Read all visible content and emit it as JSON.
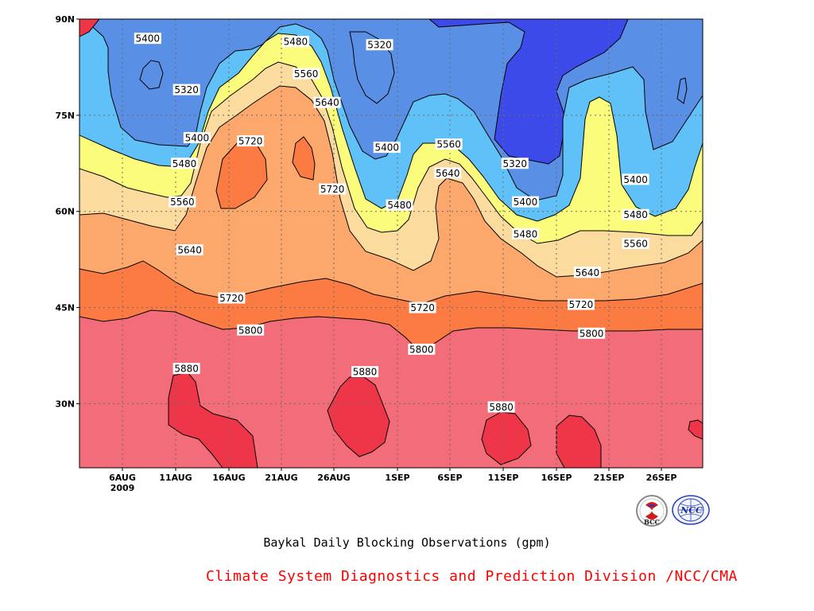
{
  "chart_data": {
    "type": "contour",
    "title": "Baykal Daily Blocking Observations (gpm)",
    "x_ticks": [
      "6AUG",
      "11AUG",
      "16AUG",
      "21AUG",
      "26AUG",
      "1SEP",
      "6SEP",
      "11SEP",
      "16SEP",
      "21SEP",
      "26SEP"
    ],
    "x_year_label": "2009",
    "y_ticks": [
      "30N",
      "45N",
      "60N",
      "75N",
      "90N"
    ],
    "ylim_deg": [
      20,
      90
    ],
    "levels": [
      5320,
      5400,
      5480,
      5560,
      5640,
      5720,
      5800,
      5880
    ],
    "level_colors": {
      "below_5320": "#3d4aea",
      "5320_5400": "#5a8fe6",
      "5400_5480": "#5fc1f7",
      "5480_5560": "#fcfc7c",
      "5560_5640": "#fcdc9e",
      "5640_5720": "#fca76b",
      "5720_5800": "#fb7b43",
      "5800_5880": "#f26c7a",
      "above_5880": "#ee3648"
    },
    "contour_labels": [
      {
        "text": "5400",
        "day": 6.5,
        "lat": 87.0
      },
      {
        "text": "5320",
        "day": 10.2,
        "lat": 79.0
      },
      {
        "text": "5400",
        "day": 11.2,
        "lat": 71.5
      },
      {
        "text": "5480",
        "day": 10.0,
        "lat": 67.5
      },
      {
        "text": "5560",
        "day": 9.8,
        "lat": 61.5
      },
      {
        "text": "5640",
        "day": 10.5,
        "lat": 54.0
      },
      {
        "text": "5720",
        "day": 14.5,
        "lat": 46.5
      },
      {
        "text": "5800",
        "day": 16.3,
        "lat": 41.5
      },
      {
        "text": "5880",
        "day": 10.2,
        "lat": 35.5
      },
      {
        "text": "5480",
        "day": 20.6,
        "lat": 86.5
      },
      {
        "text": "5560",
        "day": 21.6,
        "lat": 81.5
      },
      {
        "text": "5640",
        "day": 23.6,
        "lat": 77.0
      },
      {
        "text": "5720",
        "day": 16.3,
        "lat": 71.0
      },
      {
        "text": "5720",
        "day": 24.1,
        "lat": 63.5
      },
      {
        "text": "5880",
        "day": 27.2,
        "lat": 35.0
      },
      {
        "text": "5320",
        "day": 28.6,
        "lat": 86.0
      },
      {
        "text": "5400",
        "day": 29.3,
        "lat": 70.0
      },
      {
        "text": "5480",
        "day": 30.5,
        "lat": 61.0
      },
      {
        "text": "5560",
        "day": 35.2,
        "lat": 70.5
      },
      {
        "text": "5640",
        "day": 35.1,
        "lat": 66.0
      },
      {
        "text": "5720",
        "day": 32.7,
        "lat": 45.0
      },
      {
        "text": "5800",
        "day": 32.6,
        "lat": 38.5
      },
      {
        "text": "5880",
        "day": 40.2,
        "lat": 29.5
      },
      {
        "text": "5320",
        "day": 41.5,
        "lat": 67.5
      },
      {
        "text": "5400",
        "day": 42.5,
        "lat": 61.5
      },
      {
        "text": "5480",
        "day": 42.5,
        "lat": 56.5
      },
      {
        "text": "5640",
        "day": 48.4,
        "lat": 50.5
      },
      {
        "text": "5720",
        "day": 47.8,
        "lat": 45.5
      },
      {
        "text": "5800",
        "day": 48.8,
        "lat": 41.0
      },
      {
        "text": "5400",
        "day": 53.0,
        "lat": 65.0
      },
      {
        "text": "5480",
        "day": 53.0,
        "lat": 59.5
      },
      {
        "text": "5560",
        "day": 53.0,
        "lat": 55.0
      }
    ]
  },
  "footer": {
    "title": "Baykal Daily Blocking Observations (gpm)",
    "credit": "Climate System Diagnostics and Prediction Division /NCC/CMA",
    "logo_left": "BCC",
    "logo_right": "NCC"
  },
  "icons": {
    "logo_left": "bcc-logo-icon",
    "logo_right": "ncc-logo-icon"
  }
}
